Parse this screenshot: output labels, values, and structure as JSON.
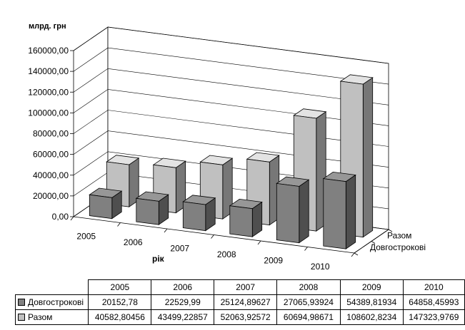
{
  "chart_data": {
    "type": "bar",
    "ylabel": "млрд. грн",
    "xlabel": "рік",
    "categories": [
      "2005",
      "2006",
      "2007",
      "2008",
      "2009",
      "2010"
    ],
    "ylim": [
      0,
      160000
    ],
    "yticks": [
      "0,00",
      "20000,00",
      "40000,00",
      "60000,00",
      "80000,00",
      "100000,00",
      "120000,00",
      "140000,00",
      "160000,00"
    ],
    "ytick_values": [
      0,
      20000,
      40000,
      60000,
      80000,
      100000,
      120000,
      140000,
      160000
    ],
    "grid": true,
    "series": [
      {
        "name": "Довгострокові",
        "values": [
          20152.78,
          22529.99,
          25124.89627,
          27065.93924,
          54389.81934,
          64858.45993
        ],
        "display": [
          "20152,78",
          "22529,99",
          "25124,89627",
          "27065,93924",
          "54389,81934",
          "64858,45993"
        ],
        "color": "#808080"
      },
      {
        "name": "Разом",
        "values": [
          40582.80456,
          43499.22857,
          52063.92572,
          60694.98671,
          108602.8234,
          147323.9769
        ],
        "display": [
          "40582,80456",
          "43499,22857",
          "52063,92572",
          "60694,98671",
          "108602,8234",
          "147323,9769"
        ],
        "color": "#c0c0c0"
      }
    ],
    "depth_axis": [
      "Разом",
      "Довгострокові"
    ]
  }
}
